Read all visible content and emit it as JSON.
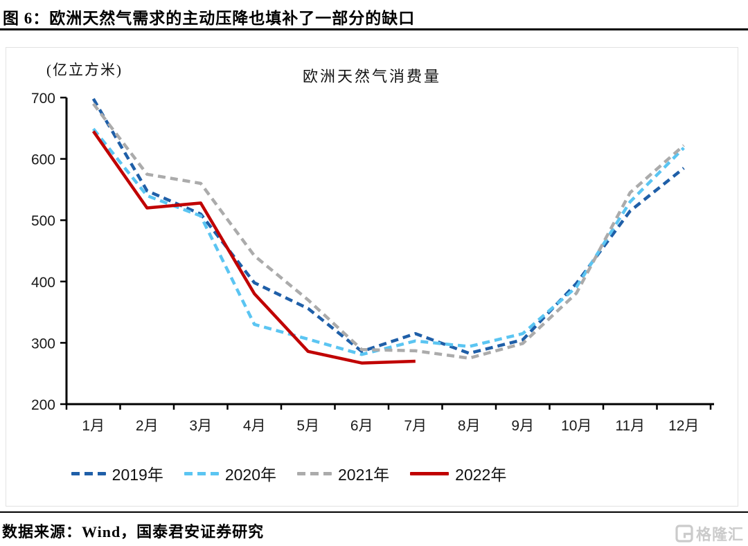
{
  "header": {
    "title": "图 6：欧洲天然气需求的主动压降也填补了一部分的缺口"
  },
  "chart_data": {
    "type": "line",
    "title": "欧洲天然气消费量",
    "unit_label": "(亿立方米)",
    "categories": [
      "1月",
      "2月",
      "3月",
      "4月",
      "5月",
      "6月",
      "7月",
      "8月",
      "9月",
      "10月",
      "11月",
      "12月"
    ],
    "series": [
      {
        "name": "2019年",
        "color": "#1f5fa8",
        "style": "dashed",
        "values": [
          698,
          548,
          510,
          398,
          356,
          286,
          315,
          283,
          305,
          397,
          515,
          585
        ]
      },
      {
        "name": "2020年",
        "color": "#5bc5f2",
        "style": "dashed",
        "values": [
          649,
          540,
          507,
          330,
          306,
          281,
          303,
          294,
          315,
          391,
          530,
          618
        ]
      },
      {
        "name": "2021年",
        "color": "#ababab",
        "style": "dashed",
        "values": [
          690,
          575,
          560,
          442,
          370,
          289,
          287,
          275,
          299,
          381,
          545,
          622
        ]
      },
      {
        "name": "2022年",
        "color": "#c00000",
        "style": "solid",
        "values": [
          645,
          520,
          528,
          380,
          286,
          267,
          270,
          null,
          null,
          null,
          null,
          null
        ]
      }
    ],
    "ylim": [
      200,
      700
    ],
    "ytick_step": 100,
    "grid": false,
    "legend_position": "bottom"
  },
  "footer": {
    "source": "数据来源：Wind，国泰君安证券研究",
    "logo_text": "格隆汇"
  },
  "colors": {
    "axis": "#000000",
    "panel_border": "#e2e2e2",
    "logo_gray": "#cbcbcb"
  }
}
